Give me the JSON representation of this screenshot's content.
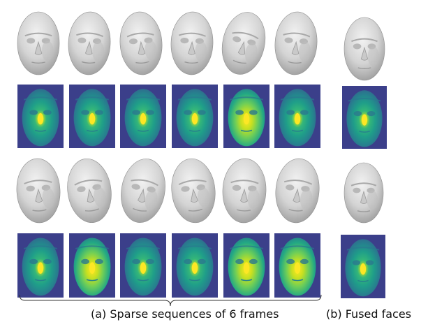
{
  "figure": {
    "captions": {
      "sparse": "(a) Sparse sequences of 6 frames",
      "fused": "(b) Fused faces"
    },
    "rows": 2,
    "frames_per_sequence": 6,
    "panels": {
      "mesh": "gray 3D face mesh render",
      "depth": "depth map rendered with viridis colormap"
    },
    "colors": {
      "depth_background": "#3b3f8a",
      "depth_face": "#1f9e89",
      "depth_peak": "#fde725",
      "mesh_light": "#e6e6e6",
      "mesh_shadow": "#8f8f8f"
    }
  }
}
